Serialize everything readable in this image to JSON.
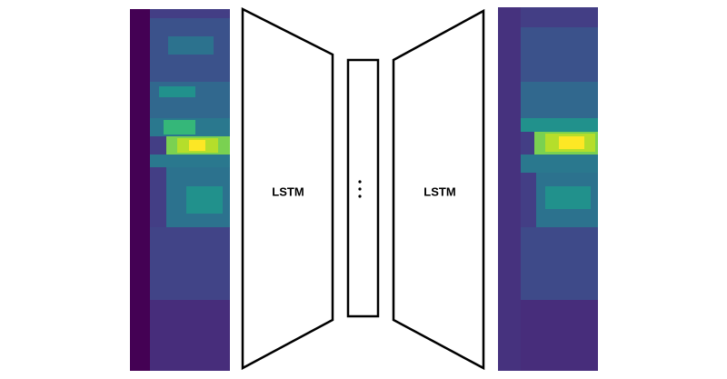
{
  "encoder": {
    "label": "LSTM"
  },
  "decoder": {
    "label": "LSTM"
  }
}
